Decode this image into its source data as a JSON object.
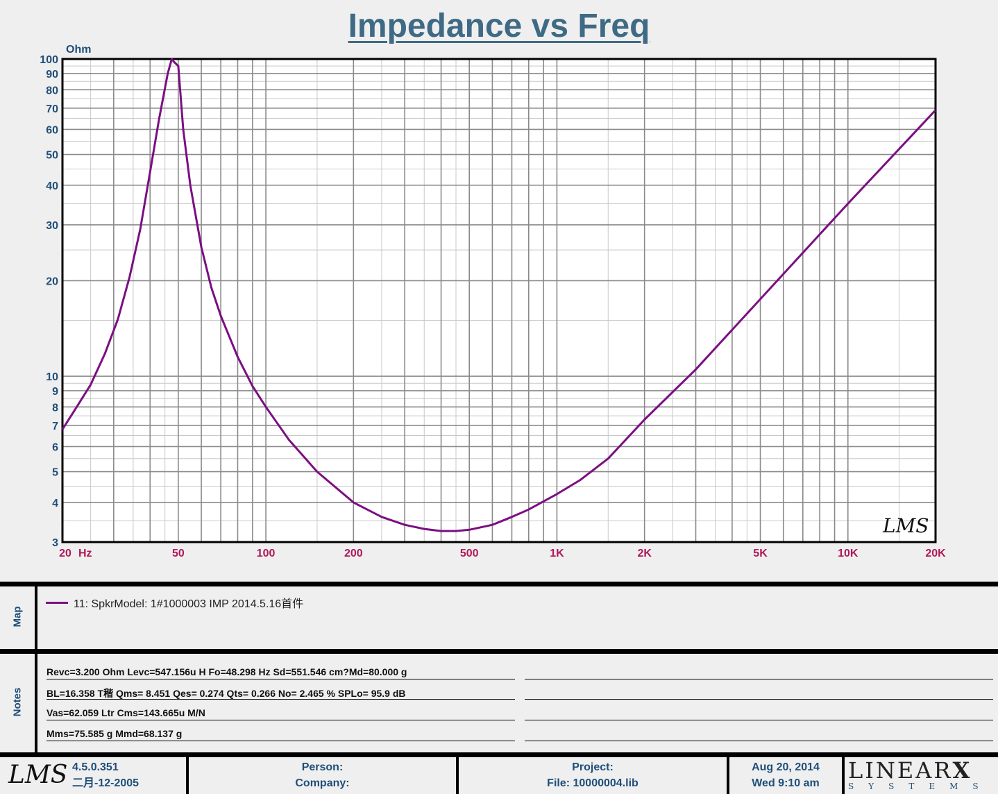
{
  "chart_data": {
    "type": "line",
    "title": "Impedance vs Freq",
    "ylabel": "Ohm",
    "xlabel": "Hz",
    "x_scale": "log",
    "y_scale": "log",
    "xlim": [
      20,
      20000
    ],
    "ylim": [
      3,
      100
    ],
    "grid": true,
    "x_ticks": [
      {
        "value": 20,
        "label": "20"
      },
      {
        "value": 50,
        "label": "50"
      },
      {
        "value": 100,
        "label": "100"
      },
      {
        "value": 200,
        "label": "200"
      },
      {
        "value": 500,
        "label": "500"
      },
      {
        "value": 1000,
        "label": "1K"
      },
      {
        "value": 2000,
        "label": "2K"
      },
      {
        "value": 5000,
        "label": "5K"
      },
      {
        "value": 10000,
        "label": "10K"
      },
      {
        "value": 20000,
        "label": "20K"
      }
    ],
    "y_ticks": [
      {
        "value": 3,
        "label": "3"
      },
      {
        "value": 4,
        "label": "4"
      },
      {
        "value": 5,
        "label": "5"
      },
      {
        "value": 6,
        "label": "6"
      },
      {
        "value": 7,
        "label": "7"
      },
      {
        "value": 8,
        "label": "8"
      },
      {
        "value": 9,
        "label": "9"
      },
      {
        "value": 10,
        "label": "10"
      },
      {
        "value": 20,
        "label": "20"
      },
      {
        "value": 30,
        "label": "30"
      },
      {
        "value": 40,
        "label": "40"
      },
      {
        "value": 50,
        "label": "50"
      },
      {
        "value": 60,
        "label": "60"
      },
      {
        "value": 70,
        "label": "70"
      },
      {
        "value": 80,
        "label": "80"
      },
      {
        "value": 90,
        "label": "90"
      },
      {
        "value": 100,
        "label": "100"
      }
    ],
    "series": [
      {
        "name": "11: SpkrModel: 1#1000003 IMP  2014.5.16首件",
        "color": "#7b0f82",
        "x": [
          20,
          22,
          25,
          28,
          31,
          34,
          37,
          40,
          43,
          46,
          47.5,
          48.3,
          50,
          52,
          55,
          60,
          65,
          70,
          80,
          90,
          100,
          120,
          150,
          200,
          250,
          300,
          350,
          400,
          450,
          500,
          600,
          700,
          800,
          1000,
          1200,
          1500,
          2000,
          3000,
          5000,
          10000,
          20000
        ],
        "y": [
          6.8,
          7.8,
          9.4,
          11.8,
          15.1,
          20.5,
          29.0,
          44.0,
          65.0,
          90.0,
          100.0,
          98.0,
          95.0,
          60.0,
          40.0,
          25.5,
          19.0,
          15.5,
          11.5,
          9.3,
          8.0,
          6.3,
          5.0,
          4.0,
          3.6,
          3.4,
          3.3,
          3.25,
          3.25,
          3.28,
          3.4,
          3.6,
          3.8,
          4.25,
          4.7,
          5.5,
          7.3,
          10.5,
          17.5,
          35.0,
          69.0
        ]
      }
    ]
  },
  "legend": {
    "entry": "11: SpkrModel: 1#1000003 IMP  2014.5.16首件"
  },
  "panels": {
    "map_label": "Map",
    "notes_label": "Notes"
  },
  "notes": [
    "Revc=3.200 Ohm  Levc=547.156u H  Fo=48.298 Hz  Sd=551.546 cm?Md=80.000 g",
    "BL=16.358 T稭  Qms= 8.451  Qes= 0.274  Qts= 0.266  No= 2.465 %  SPLo= 95.9 dB",
    "Vas=62.059 Ltr  Cms=143.665u M/N",
    "Mms=75.585 g  Mmd=68.137 g"
  ],
  "footer": {
    "lms_logo": "LMS",
    "version": "4.5.0.351",
    "version_date": "二月-12-2005",
    "person_label": "Person:",
    "company_label": "Company:",
    "project_label": "Project:",
    "file_label": "File: 10000004.lib",
    "date": "Aug 20, 2014",
    "time": "Wed  9:10 am",
    "brand_top": "LINEAR",
    "brand_x": "X",
    "brand_bottom": "SYSTEMS"
  },
  "chart_logo": "LMS"
}
